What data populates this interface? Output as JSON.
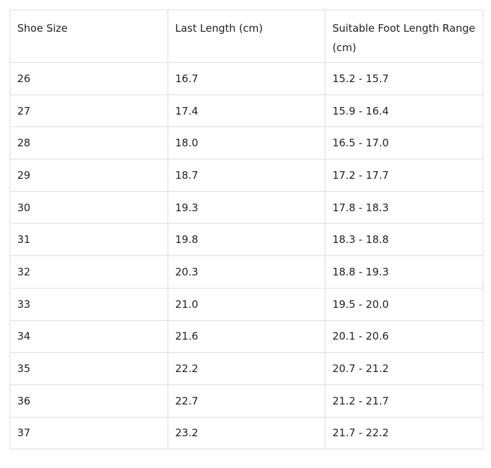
{
  "table": {
    "headers": [
      "Shoe Size",
      "Last Length (cm)",
      "Suitable Foot Length Range (cm)"
    ],
    "rows": [
      [
        "26",
        "16.7",
        "15.2 - 15.7"
      ],
      [
        "27",
        "17.4",
        "15.9 - 16.4"
      ],
      [
        "28",
        "18.0",
        "16.5 - 17.0"
      ],
      [
        "29",
        "18.7",
        "17.2 - 17.7"
      ],
      [
        "30",
        "19.3",
        "17.8 - 18.3"
      ],
      [
        "31",
        "19.8",
        "18.3 - 18.8"
      ],
      [
        "32",
        "20.3",
        "18.8 - 19.3"
      ],
      [
        "33",
        "21.0",
        "19.5 - 20.0"
      ],
      [
        "34",
        "21.6",
        "20.1 - 20.6"
      ],
      [
        "35",
        "22.2",
        "20.7 - 21.2"
      ],
      [
        "36",
        "22.7",
        "21.2 - 21.7"
      ],
      [
        "37",
        "23.2",
        "21.7 - 22.2"
      ]
    ]
  }
}
